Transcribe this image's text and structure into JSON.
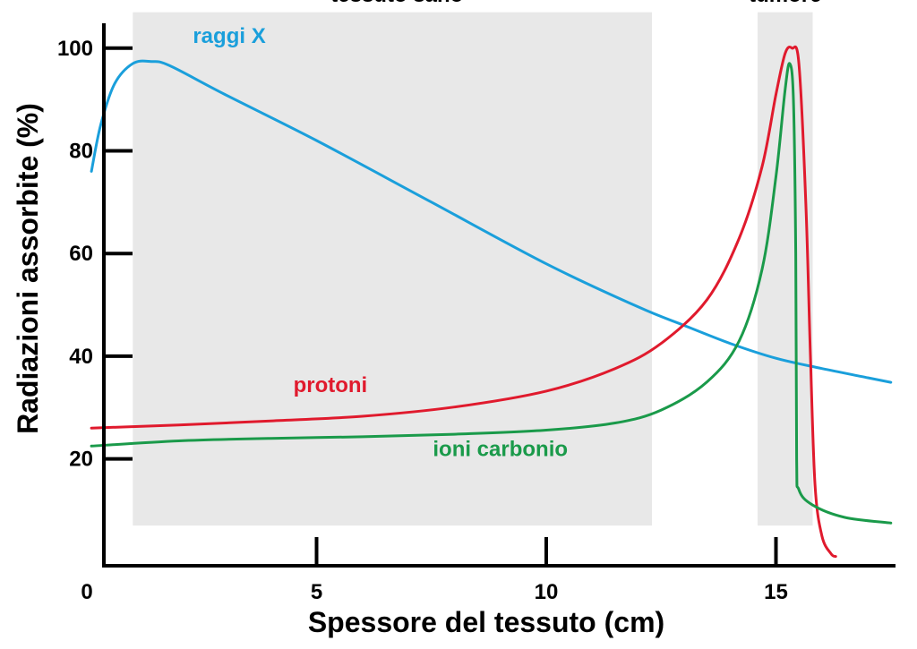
{
  "chart_data": {
    "type": "line",
    "title": "",
    "xlabel": "Spessore del tessuto (cm)",
    "ylabel": "Radiazioni assorbite (%)",
    "xlim": [
      0,
      17.5
    ],
    "ylim": [
      0,
      105
    ],
    "grid": false,
    "x_ticks": [
      {
        "value": 0,
        "label": "0"
      },
      {
        "value": 5,
        "label": "5"
      },
      {
        "value": 10,
        "label": "10"
      },
      {
        "value": 15,
        "label": "15"
      }
    ],
    "y_ticks": [
      {
        "value": 20,
        "label": "20"
      },
      {
        "value": 40,
        "label": "40"
      },
      {
        "value": 60,
        "label": "60"
      },
      {
        "value": 80,
        "label": "80"
      },
      {
        "value": 100,
        "label": "100"
      }
    ],
    "regions": [
      {
        "name": "tessuto sano",
        "x_start": 1.0,
        "x_end": 12.3,
        "y_start": 7,
        "y_end": 107
      },
      {
        "name": "tumore",
        "x_start": 14.6,
        "x_end": 15.8,
        "y_start": 7,
        "y_end": 107
      }
    ],
    "series": [
      {
        "name": "raggi X",
        "color": "#1a9fdb",
        "points": [
          [
            0.1,
            76
          ],
          [
            0.3,
            85
          ],
          [
            0.6,
            93
          ],
          [
            1.0,
            97
          ],
          [
            1.4,
            97.4
          ],
          [
            1.8,
            96.6
          ],
          [
            3.0,
            91
          ],
          [
            5.0,
            82
          ],
          [
            7.5,
            70
          ],
          [
            10.0,
            58
          ],
          [
            12.0,
            49.6
          ],
          [
            13.0,
            46
          ],
          [
            14.0,
            42.5
          ],
          [
            15.0,
            39.6
          ],
          [
            16.0,
            37.6
          ],
          [
            17.0,
            35.8
          ],
          [
            17.5,
            34.9
          ]
        ]
      },
      {
        "name": "protoni",
        "color": "#e01a2d",
        "points": [
          [
            0.1,
            26
          ],
          [
            2.0,
            26.6
          ],
          [
            4.0,
            27.4
          ],
          [
            6.0,
            28.3
          ],
          [
            8.0,
            30.1
          ],
          [
            10.0,
            33.2
          ],
          [
            11.5,
            37.6
          ],
          [
            12.5,
            42.5
          ],
          [
            13.5,
            51
          ],
          [
            14.2,
            63
          ],
          [
            14.7,
            77
          ],
          [
            15.0,
            91
          ],
          [
            15.2,
            99
          ],
          [
            15.35,
            100
          ],
          [
            15.5,
            97
          ],
          [
            15.65,
            70
          ],
          [
            15.75,
            40
          ],
          [
            15.85,
            15
          ],
          [
            16.0,
            5
          ],
          [
            16.2,
            1.5
          ],
          [
            16.3,
            1
          ]
        ]
      },
      {
        "name": "ioni carbonio",
        "color": "#1a9a4a",
        "points": [
          [
            0.1,
            22.5
          ],
          [
            2.0,
            23.5
          ],
          [
            4.0,
            24
          ],
          [
            6.0,
            24.3
          ],
          [
            8.0,
            24.8
          ],
          [
            10.0,
            25.6
          ],
          [
            11.5,
            27
          ],
          [
            12.5,
            29.5
          ],
          [
            13.5,
            35
          ],
          [
            14.2,
            43
          ],
          [
            14.7,
            57
          ],
          [
            15.0,
            75
          ],
          [
            15.2,
            92
          ],
          [
            15.3,
            97
          ],
          [
            15.38,
            90
          ],
          [
            15.43,
            60
          ],
          [
            15.45,
            20
          ],
          [
            15.5,
            14
          ],
          [
            15.8,
            11
          ],
          [
            16.5,
            8.6
          ],
          [
            17.5,
            7.5
          ]
        ]
      }
    ],
    "annotations": [
      {
        "text": "raggi X",
        "series": "raggi X",
        "x": 3.1,
        "y": 101
      },
      {
        "text": "protoni",
        "series": "protoni",
        "x": 5.3,
        "y": 33
      },
      {
        "text": "ioni carbonio",
        "series": "ioni carbonio",
        "x": 9.0,
        "y": 20.5
      },
      {
        "text": "tessuto sano",
        "region": "tessuto sano",
        "x": 6.75,
        "y": 109
      },
      {
        "text": "tumore",
        "region": "tumore",
        "x": 15.2,
        "y": 109
      }
    ]
  }
}
